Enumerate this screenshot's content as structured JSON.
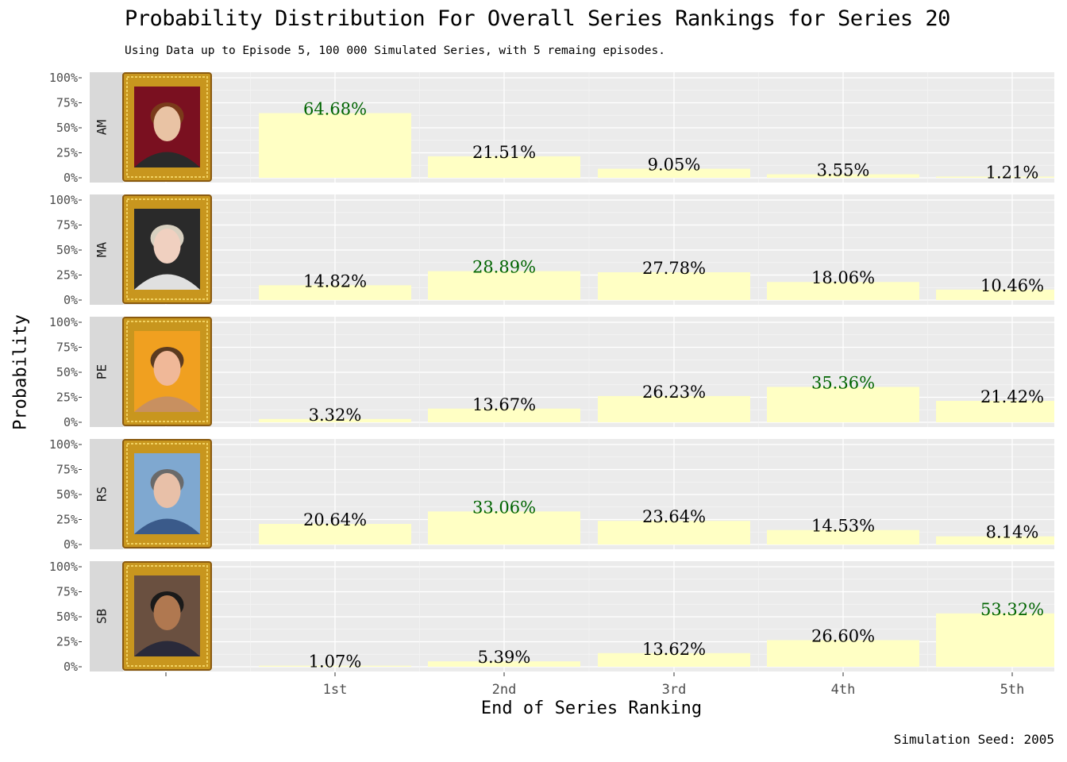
{
  "chart_data": {
    "type": "bar",
    "title": "Probability Distribution For Overall Series Rankings for Series 20",
    "subtitle": "Using Data up to Episode 5, 100 000 Simulated Series, with 5 remaing episodes.",
    "xlabel": "End of Series Ranking",
    "ylabel": "Probability",
    "caption": "Simulation Seed: 2005",
    "categories": [
      "1st",
      "2nd",
      "3rd",
      "4th",
      "5th"
    ],
    "y_ticks": [
      "0%",
      "25%",
      "50%",
      "75%",
      "100%"
    ],
    "ylim": [
      0,
      100
    ],
    "facets": [
      {
        "name": "AM",
        "values": [
          64.68,
          21.51,
          9.05,
          3.55,
          1.21
        ],
        "labels": [
          "64.68%",
          "21.51%",
          "9.05%",
          "3.55%",
          "1.21%"
        ]
      },
      {
        "name": "MA",
        "values": [
          14.82,
          28.89,
          27.78,
          18.06,
          10.46
        ],
        "labels": [
          "14.82%",
          "28.89%",
          "27.78%",
          "18.06%",
          "10.46%"
        ]
      },
      {
        "name": "PE",
        "values": [
          3.32,
          13.67,
          26.23,
          35.36,
          21.42
        ],
        "labels": [
          "3.32%",
          "13.67%",
          "26.23%",
          "35.36%",
          "21.42%"
        ]
      },
      {
        "name": "RS",
        "values": [
          20.64,
          33.06,
          23.64,
          14.53,
          8.14
        ],
        "labels": [
          "20.64%",
          "33.06%",
          "23.64%",
          "14.53%",
          "8.14%"
        ]
      },
      {
        "name": "SB",
        "values": [
          1.07,
          5.39,
          13.62,
          26.6,
          53.32
        ],
        "labels": [
          "1.07%",
          "5.39%",
          "13.62%",
          "26.60%",
          "53.32%"
        ]
      }
    ],
    "colors": {
      "bar": "#ffffc4",
      "highlight_label": "#006400",
      "label": "#000000",
      "panel": "#ebebeb",
      "strip": "#d9d9d9",
      "frame": "#c8961e"
    }
  }
}
